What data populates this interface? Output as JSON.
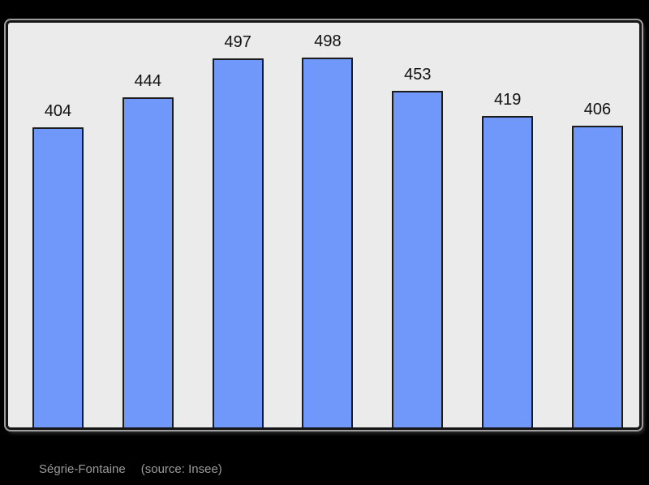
{
  "chart_data": {
    "type": "bar",
    "values": [
      404,
      444,
      497,
      498,
      453,
      419,
      406
    ],
    "value_labels_shown": true,
    "title": "",
    "xlabel": "",
    "ylabel": "",
    "ylim": [
      0,
      545
    ],
    "grid": false,
    "legend": "none",
    "bar_color": "#7097fa",
    "bar_border_color": "#1c1c1c",
    "plot_background": "#ebebeb",
    "page_background": "#000000",
    "label_color": "#111111"
  },
  "caption": {
    "commune": "Ségrie-Fontaine",
    "source": "(source: Insee)"
  }
}
